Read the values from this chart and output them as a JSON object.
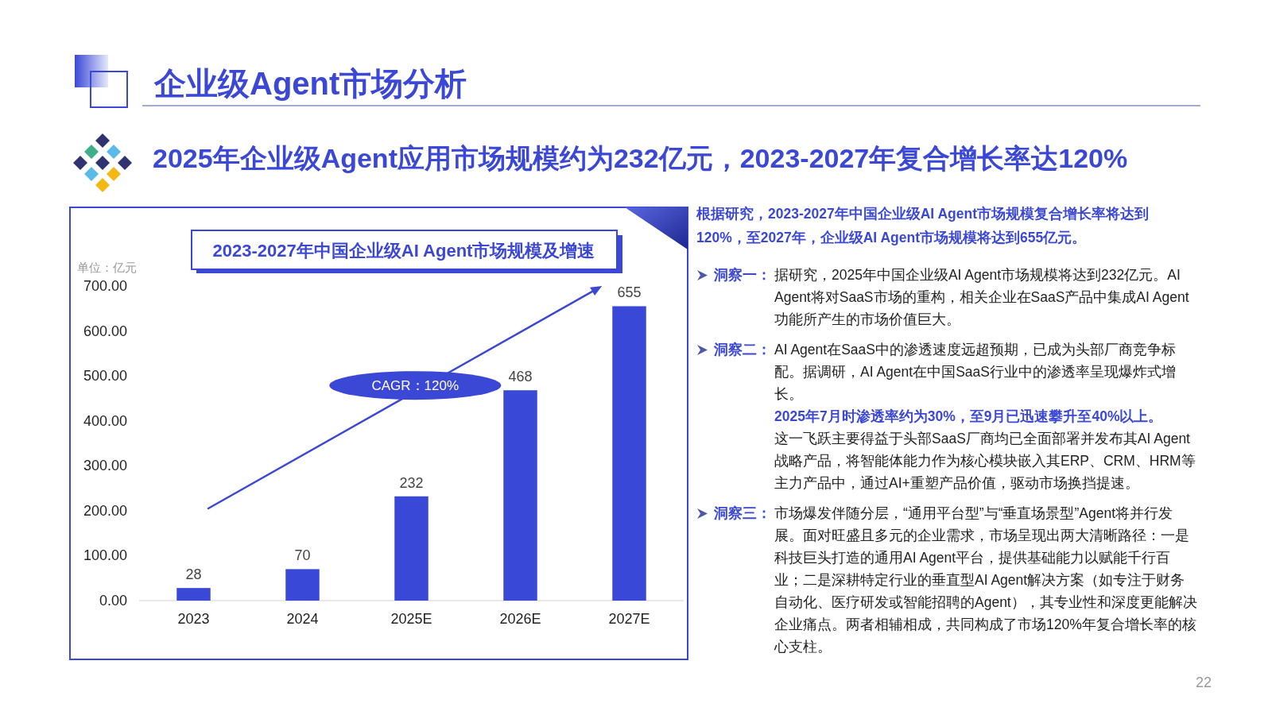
{
  "chart_data": {
    "type": "bar",
    "title": "2023-2027年中国企业级AI Agent市场规模及增速",
    "ylabel": "单位：亿元",
    "categories": [
      "2023",
      "2024",
      "2025E",
      "2026E",
      "2027E"
    ],
    "values": [
      28,
      70,
      232,
      468,
      655
    ],
    "color": "#3a48d8",
    "ylim": [
      0,
      700
    ],
    "yticks": [
      {
        "value": 0,
        "label": "0.00"
      },
      {
        "value": 100,
        "label": "100.00"
      },
      {
        "value": 200,
        "label": "200.00"
      },
      {
        "value": 300,
        "label": "300.00"
      },
      {
        "value": 400,
        "label": "400.00"
      },
      {
        "value": 500,
        "label": "500.00"
      },
      {
        "value": 600,
        "label": "600.00"
      },
      {
        "value": 700,
        "label": "700.00"
      }
    ],
    "data_labels": true,
    "annotations": [
      "企业级Agent市场分析",
      "2025年企业级Agent应用市场规模约为232亿元，2023-2027年复合增长率达120%",
      "CAGR：120%",
      "根据研究，2023-2027年中国企业级AI Agent市场规模复合增长率将达到120%，至2027年，企业级AI Agent市场规模将达到655亿元。",
      "洞察一：",
      "据研究，2025年中国企业级AI Agent市场规模将达到232亿元。AI Agent将对SaaS市场的重构，相关企业在SaaS产品中集成AI Agent功能所产生的市场价值巨大。",
      "洞察二：",
      "AI Agent在SaaS中的渗透速度远超预期，已成为头部厂商竞争标配。据调研，AI Agent在中国SaaS行业中的渗透率呈现爆炸式增长。",
      "2025年7月时渗透率约为30%，至9月已迅速攀升至40%以上。",
      "这一飞跃主要得益于头部SaaS厂商均已全面部署并发布其AI Agent战略产品，将智能体能力作为核心模块嵌入其ERP、CRM、HRM等主力产品中，通过AI+重塑产品价值，驱动市场换挡提速。",
      "洞察三：",
      "市场爆发伴随分层，“通用平台型”与“垂直场景型”Agent将并行发展。面对旺盛且多元的企业需求，市场呈现出两大清晰路径：一是科技巨头打造的通用AI Agent平台，提供基础能力以赋能千行百业；二是深耕特定行业的垂直型AI Agent解决方案（如专注于财务自动化、医疗研发或智能招聘的Agent），其专业性和深度更能解决企业痛点。两者相辅相成，共同构成了市场120%年复合增长率的核心支柱。",
      "22"
    ]
  }
}
